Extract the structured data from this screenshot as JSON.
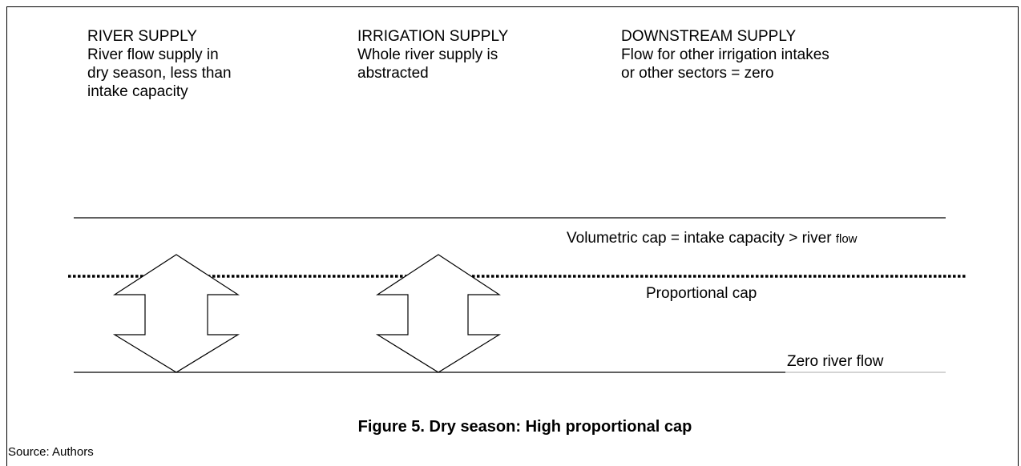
{
  "columns": [
    {
      "heading": "RIVER SUPPLY",
      "lines": [
        "River flow supply in",
        "dry season, less than",
        "intake capacity"
      ]
    },
    {
      "heading": "IRRIGATION SUPPLY",
      "lines": [
        "Whole river supply is",
        "abstracted"
      ]
    },
    {
      "heading": "DOWNSTREAM SUPPLY",
      "lines": [
        "Flow for other irrigation intakes",
        "or other sectors = zero"
      ]
    }
  ],
  "levels": {
    "volumetric_cap": {
      "label": "Volumetric cap = intake capacity > river ",
      "label_small": "flow"
    },
    "proportional_cap": {
      "label": "Proportional cap"
    },
    "zero_flow": {
      "label": "Zero river flow"
    }
  },
  "caption": "Figure 5.  Dry season: High proportional cap",
  "source": "Source: Authors"
}
